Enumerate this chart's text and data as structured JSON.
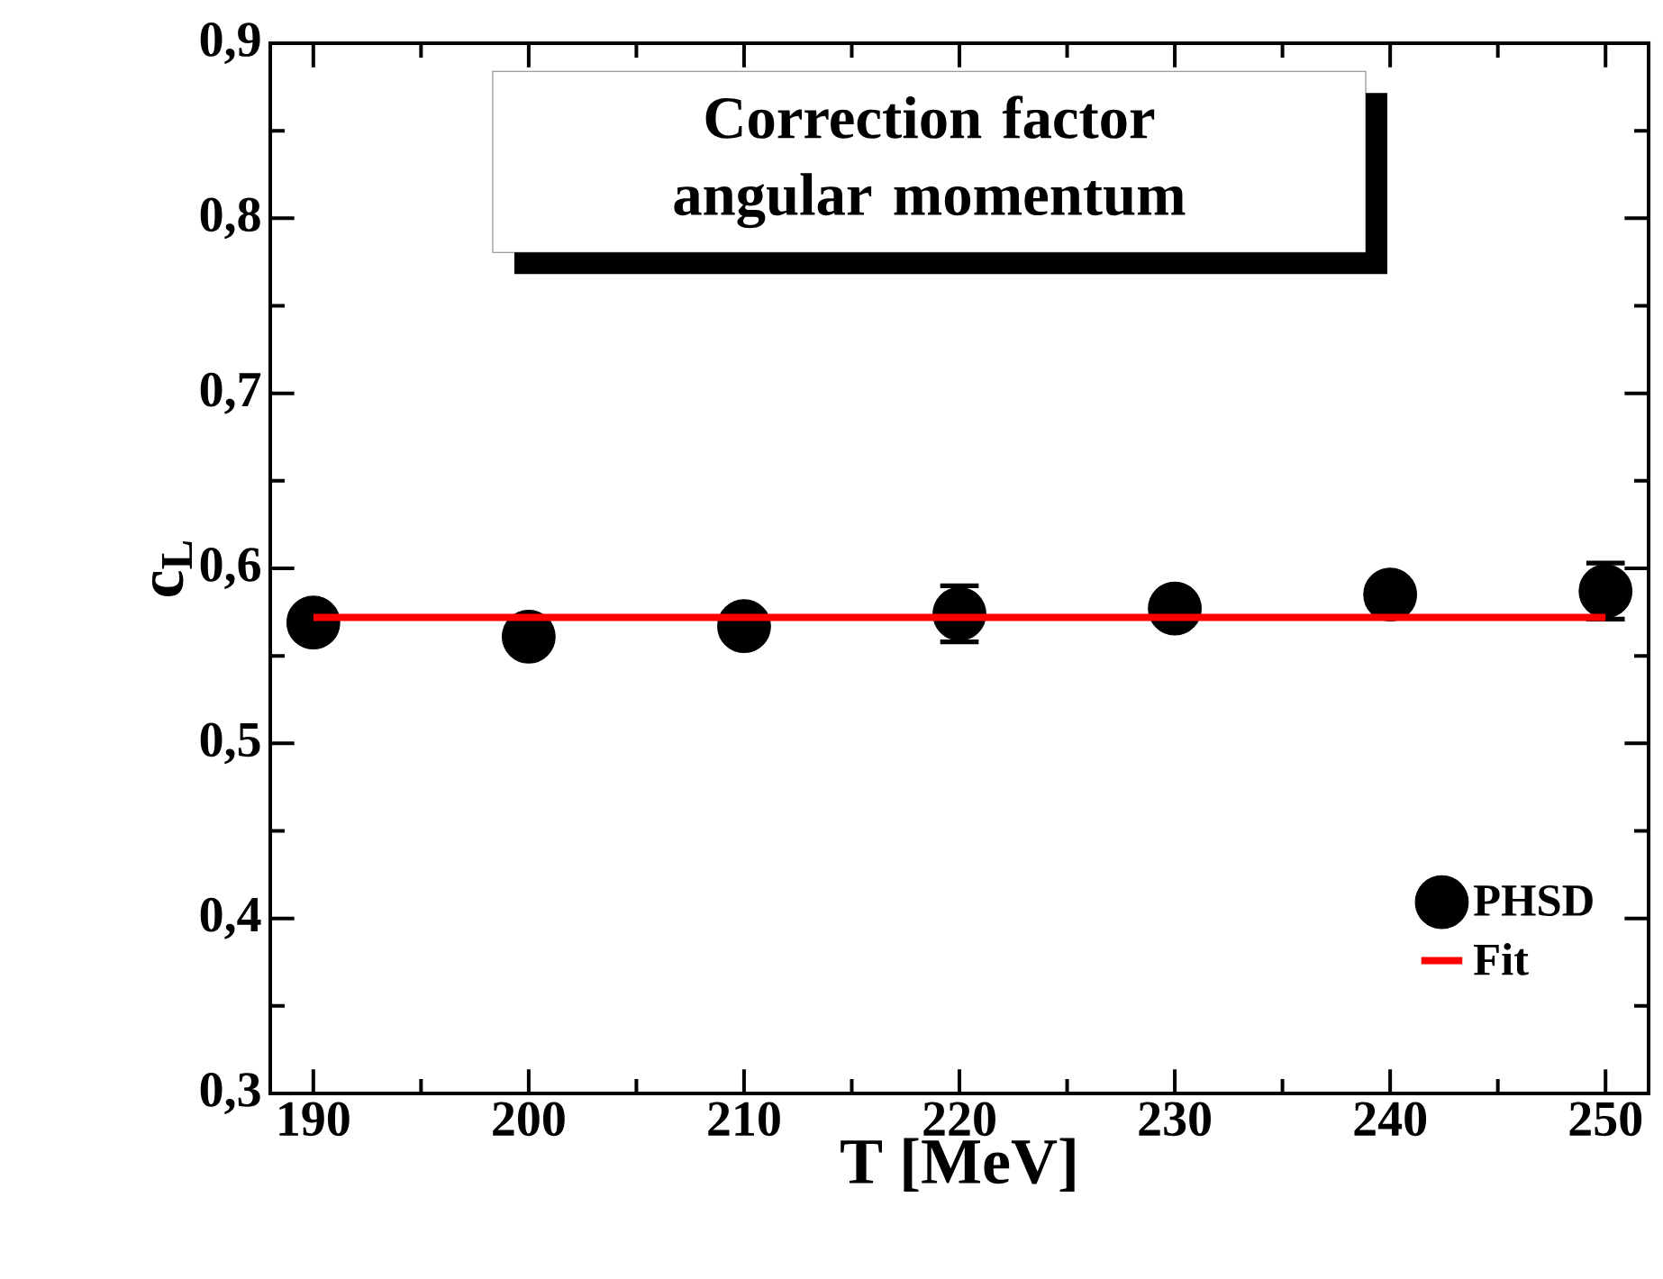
{
  "chart_data": {
    "type": "scatter",
    "title": "Correction factor angular momentum",
    "xlabel": "T [MeV]",
    "ylabel": "c$_{L}$",
    "x": [
      190,
      200,
      210,
      220,
      230,
      240,
      250
    ],
    "series": [
      {
        "name": "PHSD",
        "color": "#000000",
        "marker": "circle",
        "values": [
          0.569,
          0.561,
          0.567,
          0.574,
          0.577,
          0.585,
          0.587
        ],
        "errors": [
          null,
          null,
          null,
          0.016,
          null,
          null,
          0.016
        ]
      },
      {
        "name": "Fit",
        "type": "line",
        "color": "#ff0000",
        "marker": "none",
        "x": [
          190,
          250
        ],
        "values": [
          0.572,
          0.572
        ]
      }
    ],
    "xlim": [
      188,
      252
    ],
    "ylim": [
      0.3,
      0.9
    ],
    "xticks": [
      190,
      200,
      210,
      220,
      230,
      240,
      250
    ],
    "yticks": [
      {
        "value": 0.3,
        "label": "0,3"
      },
      {
        "value": 0.4,
        "label": "0,4"
      },
      {
        "value": 0.5,
        "label": "0,5"
      },
      {
        "value": 0.6,
        "label": "0,6"
      },
      {
        "value": 0.7,
        "label": "0,7"
      },
      {
        "value": 0.8,
        "label": "0,8"
      },
      {
        "value": 0.9,
        "label": "0,9"
      }
    ],
    "legend": "bottom right"
  }
}
